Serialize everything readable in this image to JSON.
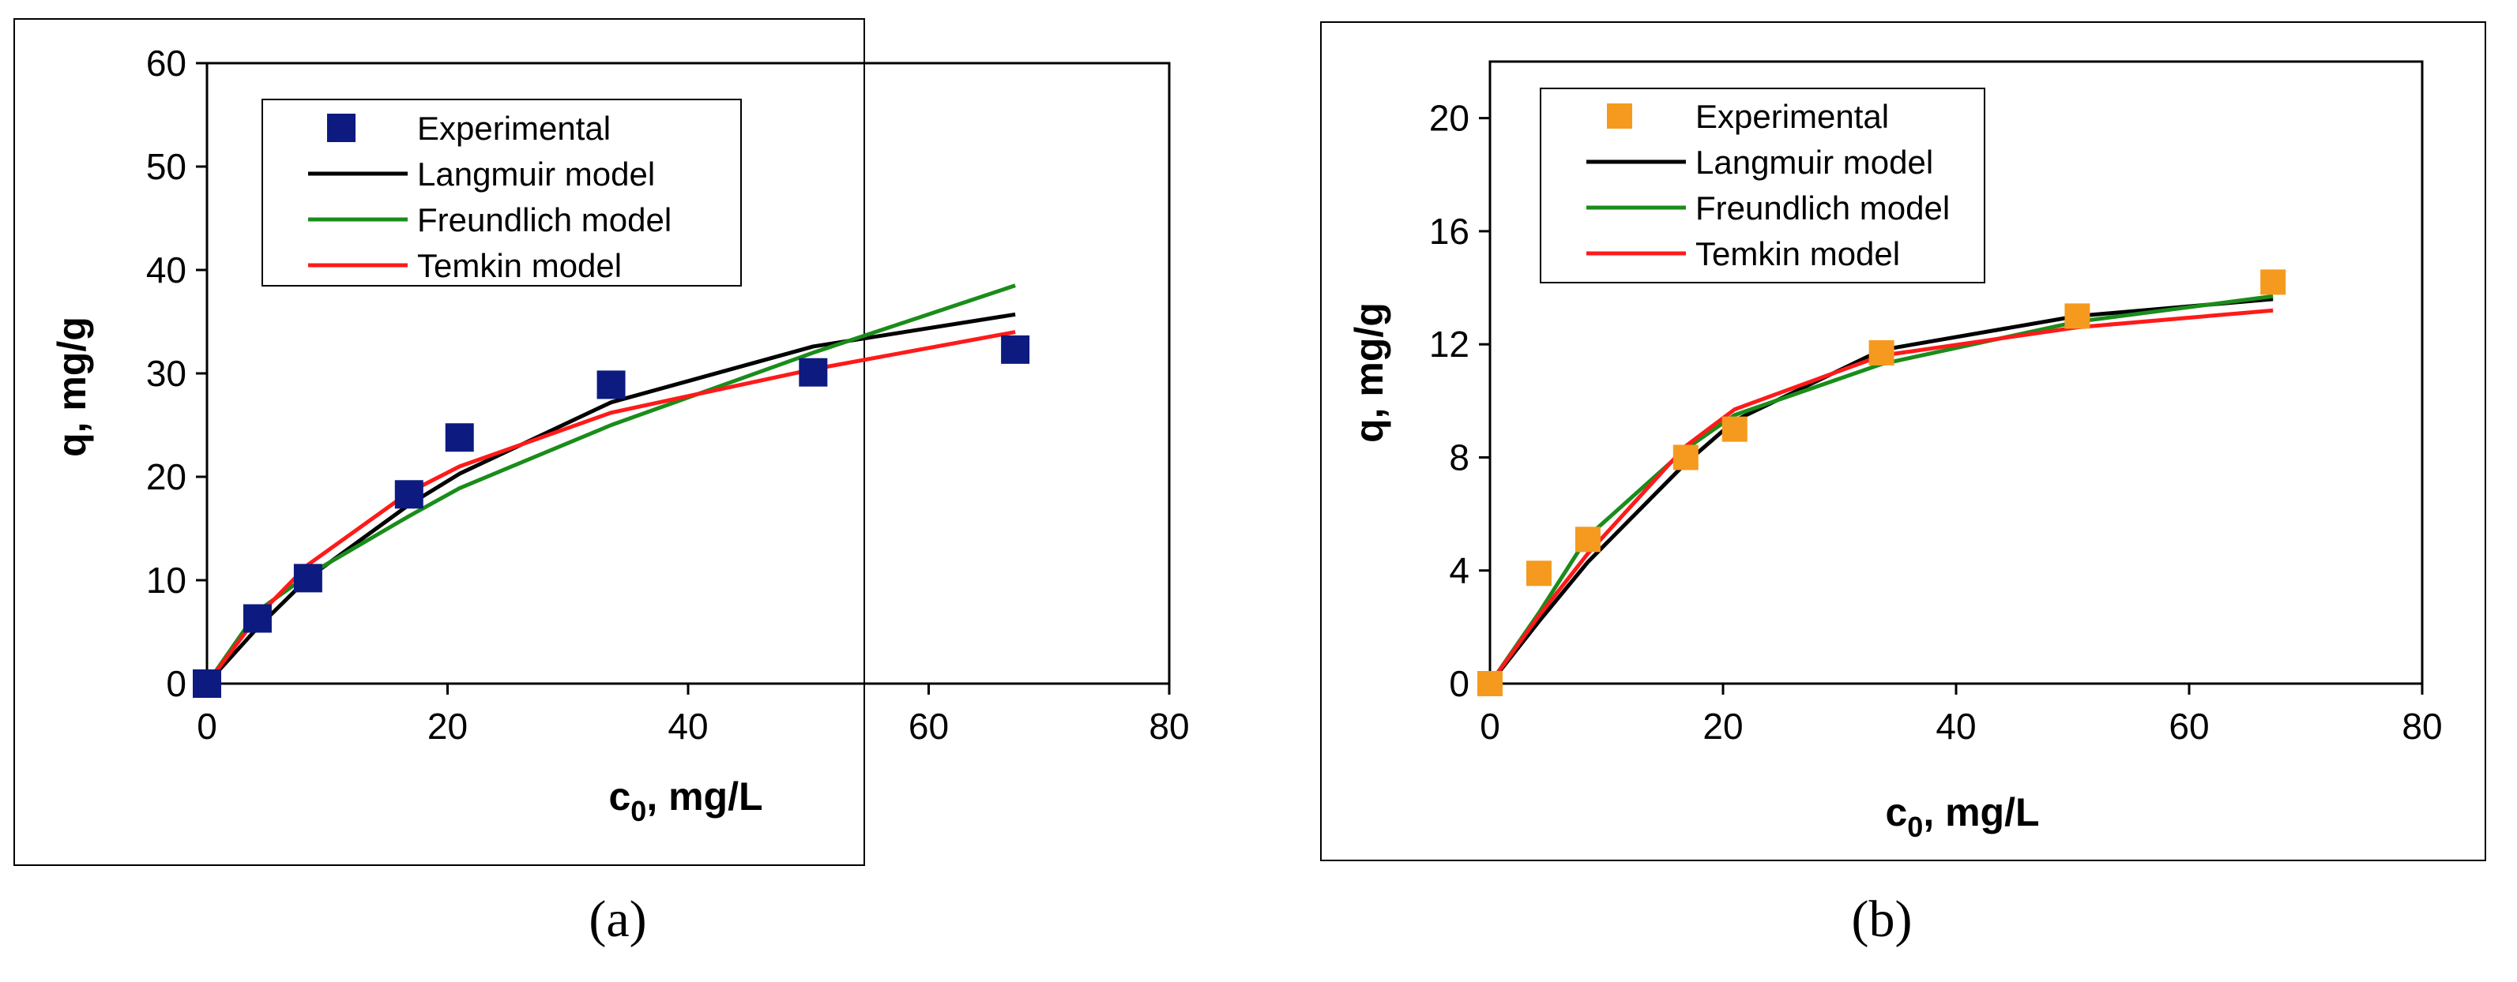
{
  "chart_data": [
    {
      "type": "scatter",
      "panel_label": "(a)",
      "xlabel": "c0, mg/L",
      "xlabel_main": "c",
      "xlabel_sub": "0",
      "xlabel_rest": ", mg/L",
      "ylabel": "q, mg/g",
      "xlim": [
        0,
        80
      ],
      "ylim": [
        0,
        60
      ],
      "xticks": [
        0,
        20,
        40,
        60,
        80
      ],
      "yticks": [
        0,
        10,
        20,
        30,
        40,
        50,
        60
      ],
      "grid": false,
      "legend_position": "top-left",
      "series": [
        {
          "name": "Experimental",
          "kind": "marker",
          "color": "#0d1a80",
          "x": [
            0,
            4.2,
            8.4,
            16.8,
            21,
            33.6,
            50.4,
            67.2
          ],
          "y": [
            0,
            6.3,
            10.2,
            18.3,
            23.8,
            28.9,
            30.1,
            32.3
          ]
        },
        {
          "name": "Langmuir model",
          "kind": "line",
          "color": "#000000",
          "x": [
            0,
            4.2,
            8.4,
            16.8,
            21,
            33.6,
            50.4,
            67.2
          ],
          "y": [
            0,
            5.4,
            10.2,
            17.3,
            20.3,
            27.2,
            32.6,
            35.7
          ]
        },
        {
          "name": "Freundlich model",
          "kind": "line",
          "color": "#1a8c1a",
          "x": [
            0,
            4.2,
            8.4,
            16.8,
            21,
            33.6,
            50.4,
            67.2
          ],
          "y": [
            0,
            7.0,
            10.5,
            16.2,
            18.9,
            25.0,
            32.0,
            38.5
          ]
        },
        {
          "name": "Temkin model",
          "kind": "line",
          "color": "#ff1a1a",
          "x": [
            0,
            4.2,
            8.4,
            16.8,
            21,
            33.6,
            50.4,
            67.2
          ],
          "y": [
            0,
            6.5,
            11.5,
            18.5,
            21.0,
            26.2,
            30.4,
            34.0
          ]
        }
      ]
    },
    {
      "type": "scatter",
      "panel_label": "(b)",
      "xlabel": "c0, mg/L",
      "xlabel_main": "c",
      "xlabel_sub": "0",
      "xlabel_rest": ", mg/L",
      "ylabel": "q, mg/g",
      "xlim": [
        0,
        80
      ],
      "ylim": [
        0,
        22
      ],
      "xticks": [
        0,
        20,
        40,
        60,
        80
      ],
      "yticks": [
        0,
        4,
        8,
        12,
        16,
        20
      ],
      "grid": false,
      "legend_position": "top-left",
      "series": [
        {
          "name": "Experimental",
          "kind": "marker",
          "color": "#f59a1e",
          "x": [
            0,
            4.2,
            8.4,
            16.8,
            21,
            33.6,
            50.4,
            67.2
          ],
          "y": [
            0,
            3.9,
            5.1,
            8.0,
            9.0,
            11.7,
            13.0,
            14.2
          ]
        },
        {
          "name": "Langmuir model",
          "kind": "line",
          "color": "#000000",
          "x": [
            0,
            4.2,
            8.4,
            16.8,
            21,
            33.6,
            50.4,
            67.2
          ],
          "y": [
            0,
            2.2,
            4.3,
            7.8,
            9.3,
            11.8,
            13.0,
            13.6
          ]
        },
        {
          "name": "Freundlich model",
          "kind": "line",
          "color": "#1a8c1a",
          "x": [
            0,
            4.2,
            8.4,
            16.8,
            21,
            33.6,
            50.4,
            67.2
          ],
          "y": [
            0,
            2.5,
            5.2,
            8.3,
            9.5,
            11.3,
            12.8,
            13.7
          ]
        },
        {
          "name": "Temkin model",
          "kind": "line",
          "color": "#ff1a1a",
          "x": [
            0,
            4.2,
            8.4,
            16.8,
            21,
            33.6,
            50.4,
            67.2
          ],
          "y": [
            0,
            2.4,
            4.6,
            8.4,
            9.7,
            11.6,
            12.6,
            13.2
          ]
        }
      ]
    }
  ]
}
